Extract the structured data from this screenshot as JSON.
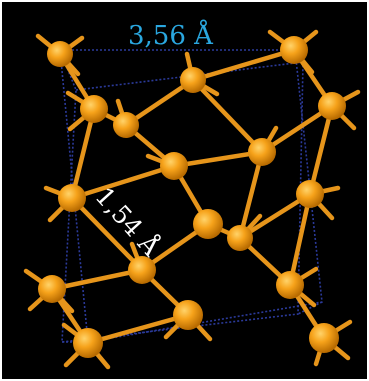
{
  "labels": {
    "lattice_constant": "3,56 Å",
    "bond_length": "1,54 Å"
  },
  "colors": {
    "background": "#000000",
    "atom": "#f6a21a",
    "atom_highlight": "#ffd36a",
    "atom_shadow": "#b76a00",
    "bond": "#e6951b",
    "cell_edge": "#2b3a9a",
    "label_lattice": "#2aa7df",
    "label_bond": "#ffffff"
  }
}
